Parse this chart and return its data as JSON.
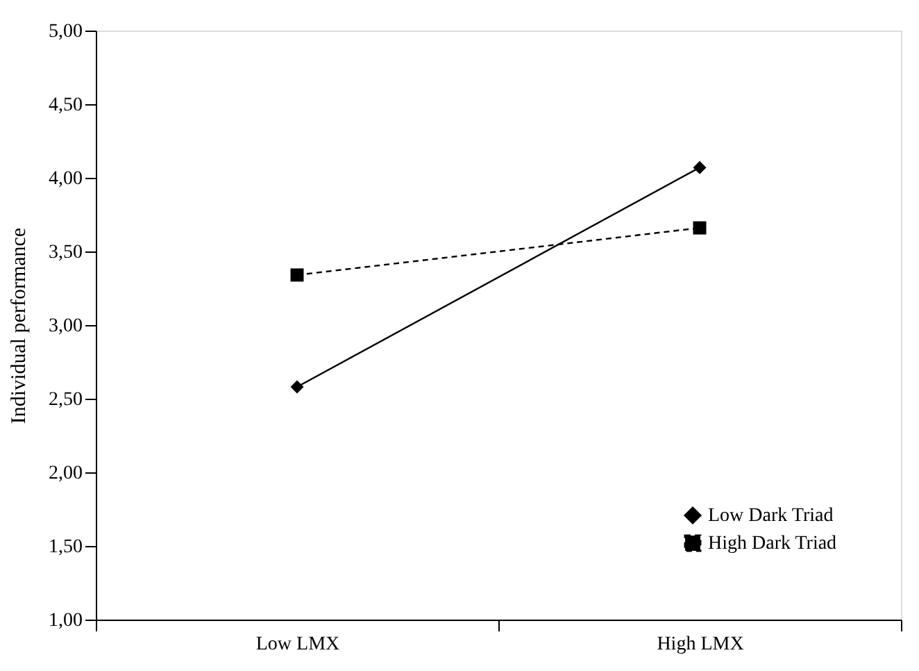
{
  "chart_data": {
    "type": "line",
    "ylabel": "Individual performance",
    "categories": [
      "Low LMX",
      "High LMX"
    ],
    "series": [
      {
        "name": "Low Dark Triad",
        "color": "#000000",
        "values": [
          2.58,
          4.07
        ],
        "marker": "diamond",
        "line_style": "solid"
      },
      {
        "name": "High Dark Triad",
        "color": "#000000",
        "values": [
          3.34,
          3.66
        ],
        "marker": "square",
        "line_style": "dashed"
      }
    ],
    "ylim": [
      1,
      5
    ],
    "yticks": [
      {
        "value": 1,
        "label": "1,00"
      },
      {
        "value": 1.5,
        "label": "1,50"
      },
      {
        "value": 2,
        "label": "2,00"
      },
      {
        "value": 2.5,
        "label": "2,50"
      },
      {
        "value": 3,
        "label": "3,00"
      },
      {
        "value": 3.5,
        "label": "3,50"
      },
      {
        "value": 4,
        "label": "4,00"
      },
      {
        "value": 4.5,
        "label": "4,50"
      },
      {
        "value": 5,
        "label": "5,00"
      }
    ],
    "grid": false,
    "legend": "bottom right"
  }
}
